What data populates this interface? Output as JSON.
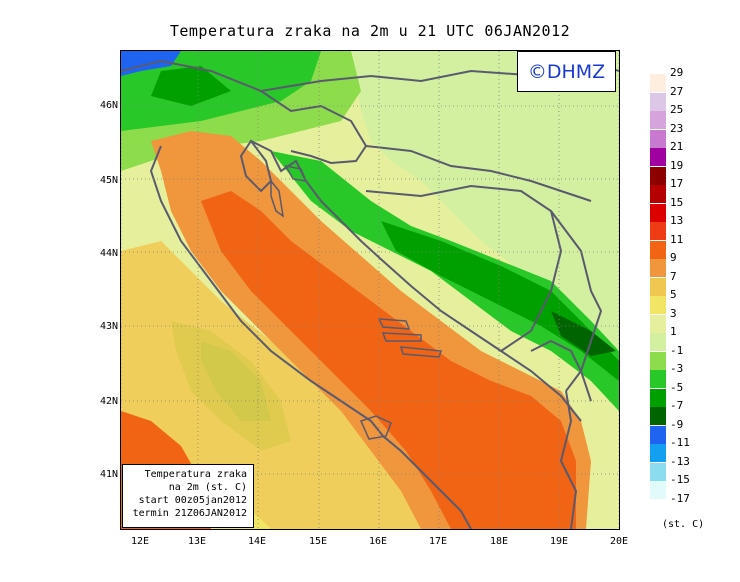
{
  "title": "Temperatura zraka na 2m u 21 UTC 06JAN2012",
  "logo": "©DHMZ",
  "info_box": {
    "line1": "Temperatura zraka",
    "line2": "na 2m (st. C)",
    "line3": "start 00z05jan2012",
    "line4": "termin 21Z06JAN2012"
  },
  "lat_labels": [
    "46N",
    "45N",
    "44N",
    "43N",
    "42N",
    "41N"
  ],
  "lon_labels": [
    "12E",
    "13E",
    "14E",
    "15E",
    "16E",
    "17E",
    "18E",
    "19E",
    "20E"
  ],
  "legend": {
    "units": "(st. C)",
    "labels": [
      "29",
      "27",
      "25",
      "23",
      "21",
      "19",
      "17",
      "15",
      "13",
      "11",
      "9",
      "7",
      "5",
      "3",
      "1",
      "-1",
      "-3",
      "-5",
      "-7",
      "-9",
      "-11",
      "-13",
      "-15",
      "-17"
    ],
    "colors": [
      "#fdeee0",
      "#dcc8e6",
      "#d6a3dc",
      "#c87ad0",
      "#a000a0",
      "#8c0000",
      "#b40000",
      "#dc0000",
      "#f03c14",
      "#f06414",
      "#f0963c",
      "#f0c850",
      "#f0e664",
      "#e6f09c",
      "#d2f0a0",
      "#8cdc4c",
      "#28c828",
      "#00a000",
      "#006400",
      "#1e64f0",
      "#14a0f0",
      "#8cdcf0",
      "#e1fafa",
      "#ffffff"
    ]
  },
  "colors": {
    "sea_dark": "#f06414",
    "sea_mid": "#f0963c",
    "land_cold": "#00a000",
    "land_mild": "#d2f0a0",
    "coast_line": "#5a5a6e",
    "logo_text": "#1a3ad4"
  }
}
